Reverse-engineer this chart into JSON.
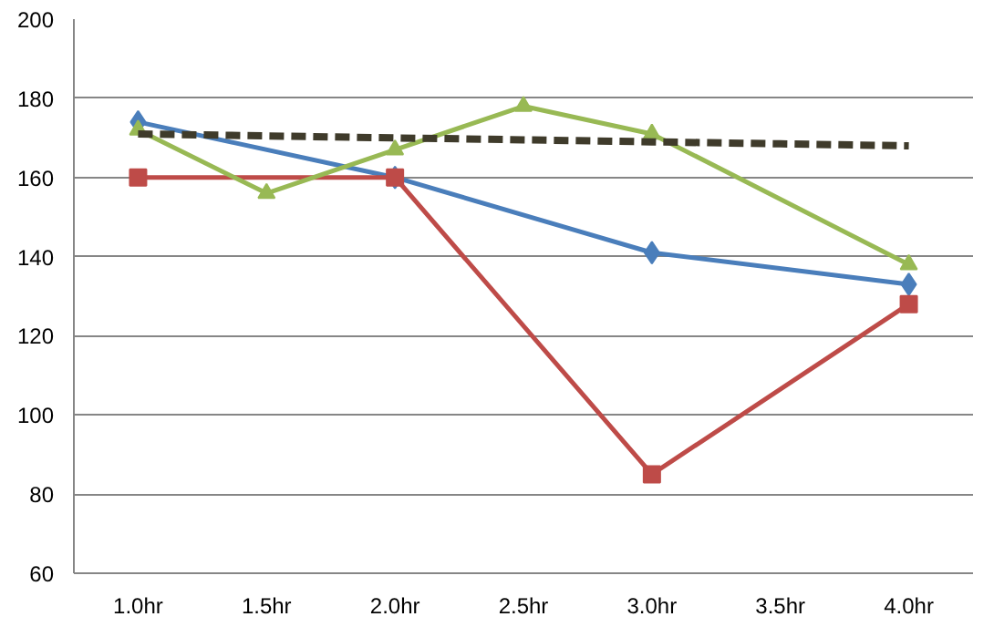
{
  "chart_data": {
    "type": "line",
    "categories": [
      "1.0hr",
      "1.5hr",
      "2.0hr",
      "2.5hr",
      "3.0hr",
      "3.5hr",
      "4.0hr"
    ],
    "series": [
      {
        "color": "#4a7ebb",
        "marker": "diamond",
        "values": [
          174,
          null,
          160,
          null,
          141,
          null,
          133
        ]
      },
      {
        "color": "#be4b48",
        "marker": "square",
        "values": [
          160,
          null,
          160,
          null,
          85,
          null,
          128
        ]
      },
      {
        "color": "#98b954",
        "marker": "triangle",
        "values": [
          172,
          156,
          167,
          178,
          171,
          null,
          138
        ]
      },
      {
        "color": "#3f3b2b",
        "marker": "none",
        "line_style": "dashed",
        "values": [
          171,
          170.5,
          170,
          169.5,
          169,
          168.5,
          168
        ]
      }
    ],
    "ylim": [
      60,
      200
    ],
    "yticks": [
      60,
      80,
      100,
      120,
      140,
      160,
      180,
      200
    ],
    "grid": "y"
  }
}
